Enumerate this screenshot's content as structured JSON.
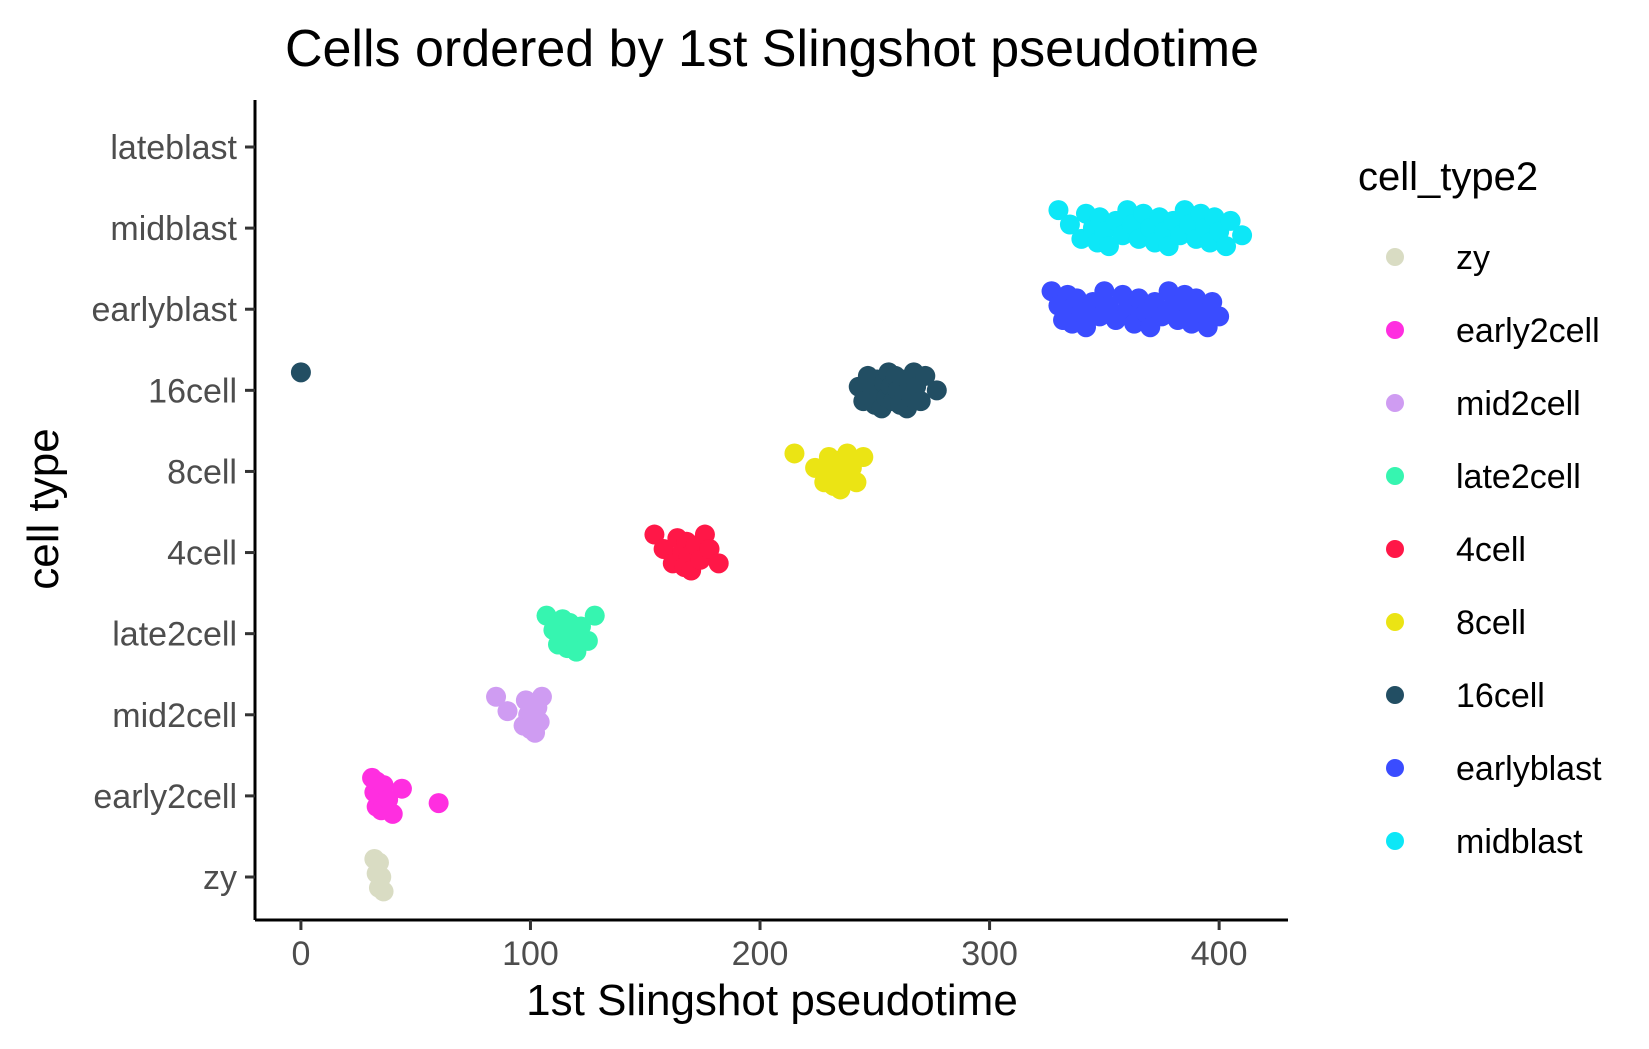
{
  "chart_data": {
    "type": "scatter",
    "title": "Cells ordered by 1st Slingshot pseudotime",
    "xlabel": "1st Slingshot pseudotime",
    "ylabel": "cell type",
    "xlim": [
      -20,
      430
    ],
    "x_ticks": [
      0,
      100,
      200,
      300,
      400
    ],
    "y_categories": [
      "zy",
      "early2cell",
      "mid2cell",
      "late2cell",
      "4cell",
      "8cell",
      "16cell",
      "earlyblast",
      "midblast",
      "lateblast"
    ],
    "grid": false,
    "legend": {
      "title": "cell_type2",
      "placement": "right",
      "entries": [
        "zy",
        "early2cell",
        "mid2cell",
        "late2cell",
        "4cell",
        "8cell",
        "16cell",
        "earlyblast",
        "midblast"
      ]
    },
    "colors": {
      "zy": "#d9dcc3",
      "early2cell": "#ff2ee0",
      "mid2cell": "#cf9cf2",
      "late2cell": "#36f5b0",
      "4cell": "#ff1747",
      "8cell": "#ebe414",
      "16cell": "#224e63",
      "earlyblast": "#3a4cff",
      "midblast": "#0de7f7"
    },
    "series": [
      {
        "name": "zy",
        "category": "zy",
        "x": [
          32,
          33,
          34,
          34,
          35,
          36
        ]
      },
      {
        "name": "early2cell",
        "category": "early2cell",
        "x": [
          31,
          32,
          33,
          33,
          34,
          35,
          36,
          38,
          40,
          44,
          60
        ]
      },
      {
        "name": "mid2cell",
        "category": "mid2cell",
        "x": [
          85,
          90,
          97,
          98,
          99,
          100,
          100,
          101,
          102,
          103,
          104,
          105
        ]
      },
      {
        "name": "late2cell",
        "category": "late2cell",
        "x": [
          107,
          110,
          112,
          114,
          115,
          116,
          117,
          118,
          120,
          122,
          125,
          128
        ]
      },
      {
        "name": "4cell",
        "category": "4cell",
        "x": [
          154,
          158,
          162,
          164,
          166,
          167,
          168,
          169,
          170,
          172,
          174,
          176,
          178,
          182
        ]
      },
      {
        "name": "8cell",
        "category": "8cell",
        "x": [
          215,
          224,
          228,
          230,
          231,
          232,
          233,
          234,
          235,
          236,
          237,
          238,
          240,
          242,
          245
        ]
      },
      {
        "name": "16cell",
        "category": "16cell",
        "x": [
          0,
          243,
          245,
          247,
          249,
          250,
          251,
          252,
          253,
          254,
          255,
          256,
          257,
          258,
          259,
          260,
          261,
          262,
          263,
          264,
          265,
          266,
          267,
          268,
          270,
          272,
          277
        ]
      },
      {
        "name": "earlyblast",
        "category": "earlyblast",
        "x": [
          327,
          330,
          332,
          334,
          335,
          336,
          338,
          340,
          342,
          345,
          348,
          350,
          352,
          355,
          358,
          360,
          363,
          365,
          368,
          370,
          372,
          375,
          378,
          380,
          382,
          385,
          387,
          388,
          390,
          392,
          395,
          397,
          400
        ]
      },
      {
        "name": "midblast",
        "category": "midblast",
        "x": [
          330,
          335,
          340,
          342,
          345,
          347,
          348,
          350,
          352,
          355,
          358,
          360,
          362,
          365,
          367,
          370,
          372,
          374,
          376,
          378,
          380,
          383,
          385,
          387,
          390,
          392,
          394,
          396,
          398,
          400,
          403,
          405,
          410
        ]
      }
    ]
  }
}
